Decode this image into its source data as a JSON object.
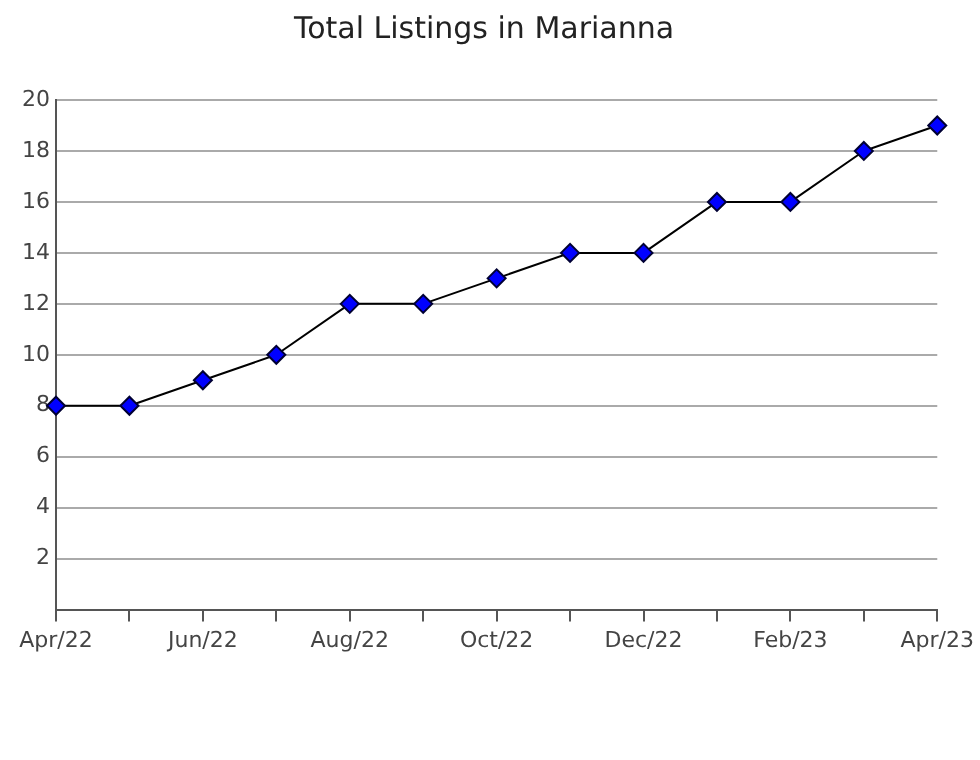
{
  "chart_data": {
    "type": "line",
    "title": "Total Listings in Marianna",
    "categories": [
      "Apr/22",
      null,
      "Jun/22",
      null,
      "Aug/22",
      null,
      "Oct/22",
      null,
      "Dec/22",
      null,
      "Feb/23",
      null,
      "Apr/23"
    ],
    "series": [
      {
        "color": "#0000ff",
        "values": [
          8,
          8,
          9,
          10,
          12,
          12,
          13,
          14,
          14,
          16,
          16,
          18,
          19
        ]
      }
    ],
    "ylim": [
      0,
      20
    ],
    "yticks": [
      2,
      4,
      6,
      8,
      10,
      12,
      14,
      16,
      18,
      20
    ],
    "grid": "y",
    "legend": false,
    "marker": "diamond",
    "line_style": "solid"
  }
}
